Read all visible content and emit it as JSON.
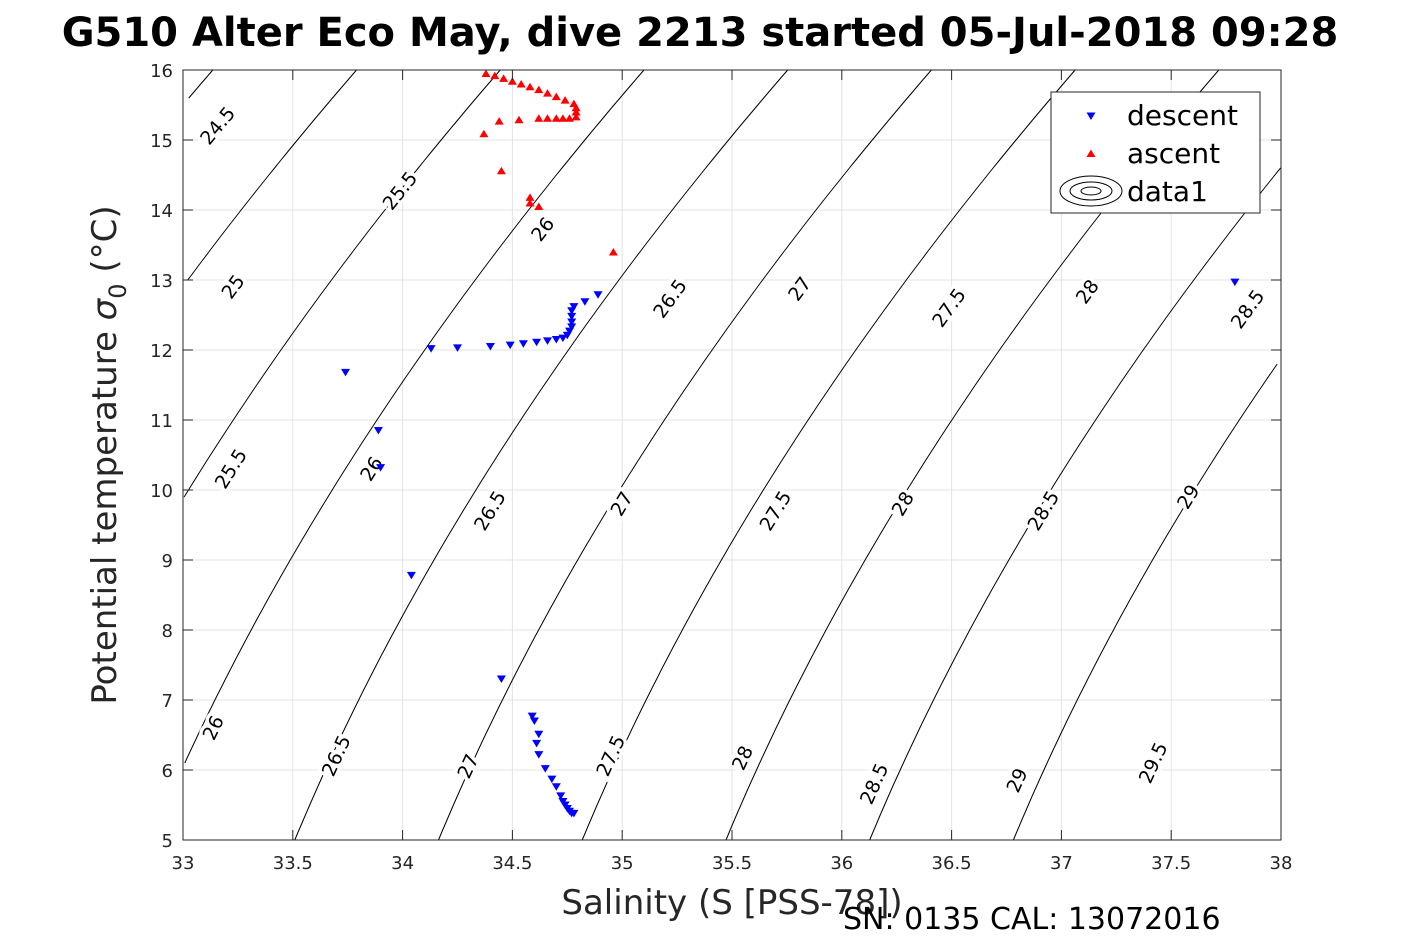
{
  "chart_data": {
    "type": "scatter",
    "title": "G510 Alter Eco May, dive 2213 started 05-Jul-2018 09:28",
    "xlabel": "Salinity (S [PSS-78])",
    "ylabel": "Potential temperature",
    "ylabel_symbol": "σ",
    "ylabel_subscript": "0",
    "ylabel_unit": "(°C)",
    "xlim": [
      33,
      38
    ],
    "ylim": [
      5,
      16
    ],
    "x_ticks": [
      "33",
      "33.5",
      "34",
      "34.5",
      "35",
      "35.5",
      "36",
      "36.5",
      "37",
      "37.5",
      "38"
    ],
    "y_ticks": [
      "5",
      "6",
      "7",
      "8",
      "9",
      "10",
      "11",
      "12",
      "13",
      "14",
      "15",
      "16"
    ],
    "grid": true,
    "legend_position": "top-right",
    "legend": [
      "descent",
      "ascent",
      "data1"
    ],
    "footer": "SN: 0135  CAL: 13072016",
    "series": [
      {
        "name": "descent",
        "marker": "triangle-down",
        "color": "#0000ff",
        "points": [
          [
            33.74,
            11.68
          ],
          [
            33.89,
            10.85
          ],
          [
            33.9,
            10.32
          ],
          [
            34.04,
            8.78
          ],
          [
            34.45,
            7.3
          ],
          [
            34.13,
            12.02
          ],
          [
            34.25,
            12.03
          ],
          [
            34.4,
            12.05
          ],
          [
            34.49,
            12.07
          ],
          [
            34.55,
            12.09
          ],
          [
            34.61,
            12.11
          ],
          [
            34.66,
            12.13
          ],
          [
            34.7,
            12.15
          ],
          [
            34.73,
            12.17
          ],
          [
            34.75,
            12.21
          ],
          [
            34.76,
            12.27
          ],
          [
            34.77,
            12.33
          ],
          [
            34.77,
            12.4
          ],
          [
            34.77,
            12.48
          ],
          [
            34.77,
            12.56
          ],
          [
            34.78,
            12.62
          ],
          [
            34.83,
            12.69
          ],
          [
            34.89,
            12.79
          ],
          [
            37.79,
            12.97
          ],
          [
            34.59,
            6.77
          ],
          [
            34.6,
            6.7
          ],
          [
            34.62,
            6.51
          ],
          [
            34.61,
            6.38
          ],
          [
            34.62,
            6.22
          ],
          [
            34.65,
            6.02
          ],
          [
            34.68,
            5.87
          ],
          [
            34.7,
            5.76
          ],
          [
            34.72,
            5.63
          ],
          [
            34.73,
            5.55
          ],
          [
            34.74,
            5.5
          ],
          [
            34.75,
            5.45
          ],
          [
            34.76,
            5.41
          ],
          [
            34.77,
            5.38
          ],
          [
            34.78,
            5.38
          ]
        ]
      },
      {
        "name": "ascent",
        "marker": "triangle-up",
        "color": "#ff0000",
        "points": [
          [
            34.38,
            15.95
          ],
          [
            34.42,
            15.92
          ],
          [
            34.46,
            15.88
          ],
          [
            34.5,
            15.84
          ],
          [
            34.54,
            15.8
          ],
          [
            34.58,
            15.76
          ],
          [
            34.62,
            15.72
          ],
          [
            34.66,
            15.67
          ],
          [
            34.7,
            15.62
          ],
          [
            34.74,
            15.57
          ],
          [
            34.78,
            15.52
          ],
          [
            34.79,
            15.46
          ],
          [
            34.79,
            15.4
          ],
          [
            34.79,
            15.33
          ],
          [
            34.76,
            15.31
          ],
          [
            34.73,
            15.31
          ],
          [
            34.7,
            15.31
          ],
          [
            34.66,
            15.31
          ],
          [
            34.62,
            15.31
          ],
          [
            34.53,
            15.29
          ],
          [
            34.44,
            15.27
          ],
          [
            34.37,
            15.09
          ],
          [
            34.45,
            14.56
          ],
          [
            34.58,
            14.18
          ],
          [
            34.58,
            14.1
          ],
          [
            34.62,
            14.05
          ],
          [
            34.96,
            13.4
          ]
        ]
      }
    ],
    "contours": {
      "name": "data1",
      "quantity": "σ0 isopycnals",
      "levels": [
        24.5,
        25,
        25.5,
        26,
        26.5,
        27,
        27.5,
        28,
        28.5,
        29,
        29.5
      ],
      "labels": [
        {
          "text": "24.5",
          "s": 33.16,
          "t": 15.2
        },
        {
          "text": "25",
          "s": 33.23,
          "t": 12.9
        },
        {
          "text": "25.5",
          "s": 33.99,
          "t": 14.27
        },
        {
          "text": "26",
          "s": 34.64,
          "t": 13.72
        },
        {
          "text": "26.5",
          "s": 35.22,
          "t": 12.73
        },
        {
          "text": "27",
          "s": 35.81,
          "t": 12.87
        },
        {
          "text": "27.5",
          "s": 36.49,
          "t": 12.6
        },
        {
          "text": "28",
          "s": 37.12,
          "t": 12.83
        },
        {
          "text": "28.5",
          "s": 37.85,
          "t": 12.58
        },
        {
          "text": "25.5",
          "s": 33.22,
          "t": 10.3
        },
        {
          "text": "26",
          "s": 33.86,
          "t": 10.3
        },
        {
          "text": "26.5",
          "s": 34.4,
          "t": 9.7
        },
        {
          "text": "27",
          "s": 35.0,
          "t": 9.8
        },
        {
          "text": "27.5",
          "s": 35.7,
          "t": 9.7
        },
        {
          "text": "28",
          "s": 36.28,
          "t": 9.8
        },
        {
          "text": "28.5",
          "s": 36.92,
          "t": 9.7
        },
        {
          "text": "29",
          "s": 37.58,
          "t": 9.9
        },
        {
          "text": "26",
          "s": 33.14,
          "t": 6.6
        },
        {
          "text": "26.5",
          "s": 33.7,
          "t": 6.2
        },
        {
          "text": "27",
          "s": 34.3,
          "t": 6.05
        },
        {
          "text": "27.5",
          "s": 34.95,
          "t": 6.2
        },
        {
          "text": "28",
          "s": 35.55,
          "t": 6.17
        },
        {
          "text": "28.5",
          "s": 36.15,
          "t": 5.8
        },
        {
          "text": "29",
          "s": 36.8,
          "t": 5.85
        },
        {
          "text": "29.5",
          "s": 37.42,
          "t": 6.1
        }
      ]
    }
  }
}
